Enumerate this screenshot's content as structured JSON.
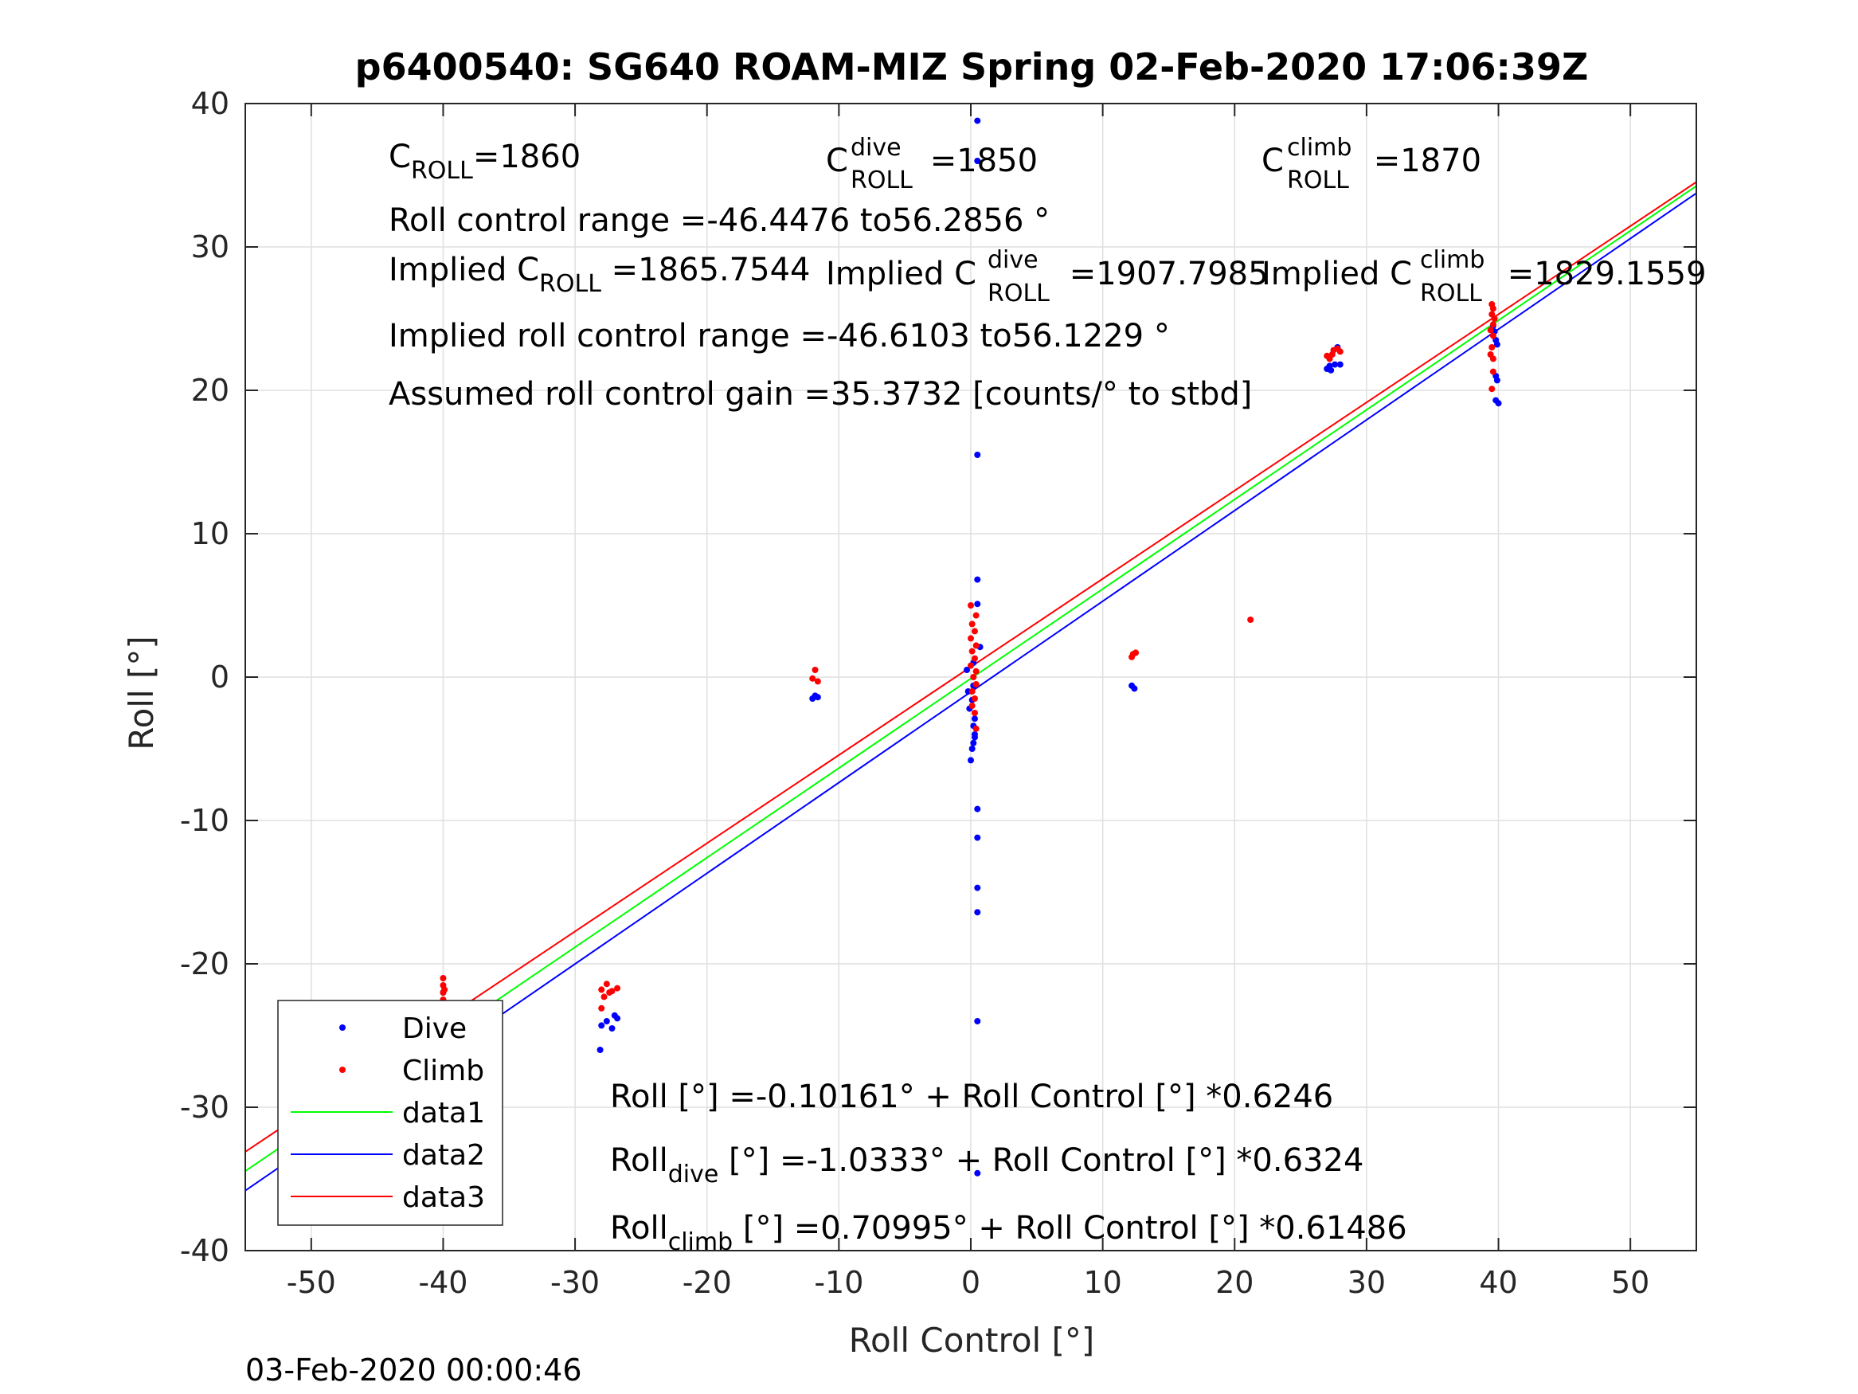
{
  "footer": {
    "timestamp": "03-Feb-2020 00:00:46"
  },
  "chart_data": {
    "type": "scatter",
    "title": "p6400540: SG640 ROAM-MIZ Spring 02-Feb-2020 17:06:39Z",
    "xlabel": "Roll Control [°]",
    "ylabel": "Roll [°]",
    "xlim": [
      -55,
      55
    ],
    "ylim": [
      -40,
      40
    ],
    "xticks": [
      -50,
      -40,
      -30,
      -20,
      -10,
      0,
      10,
      20,
      30,
      40,
      50
    ],
    "yticks": [
      -40,
      -30,
      -20,
      -10,
      0,
      10,
      20,
      30,
      40
    ],
    "grid": true,
    "legend_position": "lower-left",
    "annotations": {
      "c_roll": {
        "main": "C",
        "sub": "ROLL",
        "value": "=1860"
      },
      "c_roll_dive": {
        "main": "C",
        "sup": "dive",
        "sub": "ROLL",
        "value": " =1850"
      },
      "c_roll_climb": {
        "main": "C",
        "sup": "climb",
        "sub": "ROLL",
        "value": " =1870"
      },
      "range": "Roll control range =-46.4476 to56.2856 °",
      "implied_c": {
        "prefix": "Implied C",
        "sub": "ROLL",
        "value": " =1865.7544"
      },
      "implied_c_dive": {
        "prefix": "Implied C",
        "sup": "dive",
        "sub": "ROLL",
        "value": " =1907.7985"
      },
      "implied_c_climb": {
        "prefix": "Implied C",
        "sup": "climb",
        "sub": "ROLL",
        "value": " =1829.1559"
      },
      "implied_range": "Implied roll control range =-46.6103 to56.1229 °",
      "gain": "Assumed roll control gain =35.3732 [counts/° to stbd]",
      "fit_all": "Roll [°] =-0.10161° + Roll Control [°] *0.6246",
      "fit_dive": {
        "main": "Roll",
        "sub": "dive",
        "rest": " [°] =-1.0333° + Roll Control [°] *0.6324"
      },
      "fit_climb": {
        "main": "Roll",
        "sub": "climb",
        "rest": " [°] =0.70995° + Roll Control [°] *0.61486"
      }
    },
    "series": [
      {
        "name": "Dive",
        "type": "scatter",
        "color": "#0000ff",
        "points": [
          [
            0.5,
            38.8
          ],
          [
            0.5,
            36.0
          ],
          [
            0.5,
            15.5
          ],
          [
            0.5,
            6.8
          ],
          [
            0.5,
            5.1
          ],
          [
            0.7,
            2.1
          ],
          [
            0.2,
            1.0
          ],
          [
            -0.3,
            0.5
          ],
          [
            0.2,
            -0.6
          ],
          [
            -0.2,
            -1.0
          ],
          [
            0.1,
            -1.6
          ],
          [
            -0.1,
            -2.2
          ],
          [
            0.3,
            -2.9
          ],
          [
            0.2,
            -3.4
          ],
          [
            0.3,
            -4.0
          ],
          [
            0.2,
            -4.6
          ],
          [
            0.1,
            -5.0
          ],
          [
            0.3,
            -4.2
          ],
          [
            0.0,
            -5.8
          ],
          [
            0.5,
            -9.2
          ],
          [
            0.5,
            -11.2
          ],
          [
            0.5,
            -14.7
          ],
          [
            0.5,
            -16.4
          ],
          [
            0.5,
            -24.0
          ],
          [
            0.5,
            -34.6
          ],
          [
            -11.8,
            -1.3
          ],
          [
            -12.0,
            -1.5
          ],
          [
            -11.6,
            -1.4
          ],
          [
            12.2,
            -0.6
          ],
          [
            12.4,
            -0.8
          ],
          [
            27.0,
            21.5
          ],
          [
            27.3,
            21.4
          ],
          [
            27.6,
            21.8
          ],
          [
            28.0,
            21.8
          ],
          [
            27.2,
            21.7
          ],
          [
            27.8,
            23.0
          ],
          [
            39.7,
            24.1
          ],
          [
            39.8,
            23.5
          ],
          [
            39.9,
            23.2
          ],
          [
            39.8,
            21.0
          ],
          [
            39.9,
            20.7
          ],
          [
            39.8,
            19.3
          ],
          [
            40.0,
            19.1
          ],
          [
            39.6,
            24.5
          ],
          [
            -40.0,
            -22.0
          ],
          [
            -40.0,
            -22.8
          ],
          [
            -40.0,
            -23.5
          ],
          [
            -40.0,
            -24.0
          ],
          [
            -40.0,
            -24.8
          ],
          [
            -40.0,
            -25.5
          ],
          [
            -40.0,
            -26.0
          ],
          [
            -40.0,
            -26.6
          ],
          [
            -40.0,
            -27.2
          ],
          [
            -40.0,
            -27.8
          ],
          [
            -40.0,
            -28.5
          ],
          [
            -40.0,
            -29.2
          ],
          [
            -39.9,
            -25.0
          ],
          [
            -40.1,
            -27.0
          ],
          [
            -28.0,
            -24.3
          ],
          [
            -27.6,
            -24.0
          ],
          [
            -27.2,
            -24.5
          ],
          [
            -26.8,
            -23.8
          ],
          [
            -28.1,
            -26.0
          ],
          [
            -27.0,
            -23.6
          ]
        ]
      },
      {
        "name": "Climb",
        "type": "scatter",
        "color": "#ff0000",
        "points": [
          [
            0.0,
            5.0
          ],
          [
            0.4,
            4.3
          ],
          [
            0.1,
            3.7
          ],
          [
            0.3,
            3.2
          ],
          [
            0.0,
            2.7
          ],
          [
            0.4,
            2.2
          ],
          [
            0.1,
            1.8
          ],
          [
            0.3,
            1.3
          ],
          [
            0.0,
            0.8
          ],
          [
            0.4,
            0.4
          ],
          [
            0.2,
            0.0
          ],
          [
            0.4,
            -0.5
          ],
          [
            0.1,
            -1.0
          ],
          [
            0.3,
            -1.5
          ],
          [
            0.1,
            -2.0
          ],
          [
            0.3,
            -2.5
          ],
          [
            0.4,
            -3.6
          ],
          [
            -11.8,
            0.5
          ],
          [
            -12.0,
            -0.1
          ],
          [
            -11.6,
            -0.3
          ],
          [
            12.3,
            1.6
          ],
          [
            12.5,
            1.7
          ],
          [
            12.2,
            1.4
          ],
          [
            21.2,
            4.0
          ],
          [
            27.0,
            22.4
          ],
          [
            27.5,
            22.8
          ],
          [
            28.0,
            22.7
          ],
          [
            27.2,
            22.2
          ],
          [
            27.8,
            22.9
          ],
          [
            27.4,
            22.5
          ],
          [
            39.5,
            26.0
          ],
          [
            39.6,
            25.7
          ],
          [
            39.5,
            25.3
          ],
          [
            39.7,
            25.0
          ],
          [
            39.6,
            24.6
          ],
          [
            39.4,
            24.2
          ],
          [
            39.6,
            23.8
          ],
          [
            39.5,
            23.0
          ],
          [
            39.4,
            22.5
          ],
          [
            39.6,
            22.2
          ],
          [
            39.6,
            21.3
          ],
          [
            39.5,
            20.1
          ],
          [
            -40.0,
            -21.0
          ],
          [
            -40.0,
            -21.5
          ],
          [
            -40.0,
            -22.0
          ],
          [
            -40.0,
            -22.5
          ],
          [
            -40.0,
            -23.0
          ],
          [
            -40.0,
            -23.5
          ],
          [
            -40.0,
            -24.0
          ],
          [
            -40.0,
            -24.5
          ],
          [
            -40.0,
            -25.0
          ],
          [
            -39.9,
            -21.8
          ],
          [
            -40.1,
            -23.2
          ],
          [
            -28.0,
            -21.8
          ],
          [
            -27.6,
            -21.4
          ],
          [
            -27.2,
            -21.9
          ],
          [
            -26.8,
            -21.7
          ],
          [
            -27.8,
            -22.3
          ],
          [
            -28.0,
            -23.1
          ],
          [
            -27.4,
            -22.0
          ]
        ]
      },
      {
        "name": "data1",
        "type": "line",
        "color": "#00ff00",
        "intercept": -0.10161,
        "slope": 0.6246
      },
      {
        "name": "data2",
        "type": "line",
        "color": "#0000ff",
        "intercept": -1.0333,
        "slope": 0.6324
      },
      {
        "name": "data3",
        "type": "line",
        "color": "#ff0000",
        "intercept": 0.70995,
        "slope": 0.61486
      }
    ]
  }
}
